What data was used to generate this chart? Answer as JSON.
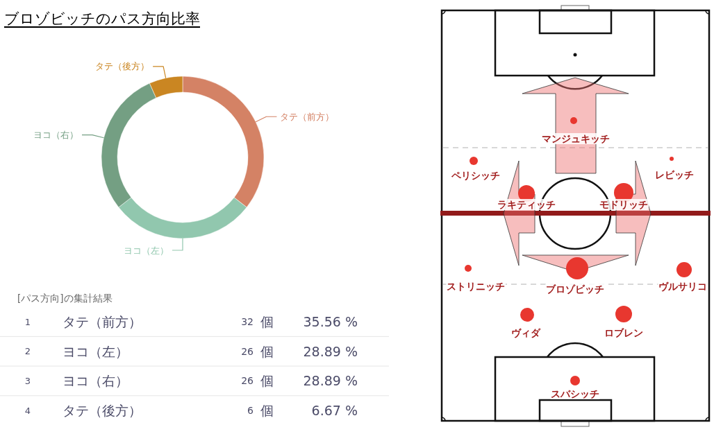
{
  "chart_data": [
    {
      "type": "donut",
      "title": "ブロゾビッチのパス方向比率",
      "categories": [
        "タテ（前方）",
        "ヨコ（左）",
        "ヨコ（右）",
        "タテ（後方）"
      ],
      "values": [
        35.56,
        28.89,
        28.89,
        6.67
      ],
      "colors": [
        "#d48265",
        "#91c7ae",
        "#749f83",
        "#ca8622"
      ],
      "annotations": [
        "[パス方向]の集計結果",
        "1",
        "タテ（前方）",
        "32",
        "個",
        "35.56 %",
        "2",
        "ヨコ（左）",
        "26",
        "個",
        "28.89 %",
        "3",
        "ヨコ（右）",
        "26",
        "個",
        "28.89 %",
        "4",
        "タテ（後方）",
        "6",
        "個",
        "6.67 %"
      ]
    },
    {
      "type": "other",
      "annotations": [
        "マンジュキッチ",
        "ペリシッチ",
        "レビッチ",
        "ラキティッチ",
        "モドリッチ",
        "ストリニッチ",
        "ブロゾビッチ",
        "ヴルサリコ",
        "ヴィダ",
        "ロブレン",
        "スバシッチ"
      ]
    }
  ]
}
